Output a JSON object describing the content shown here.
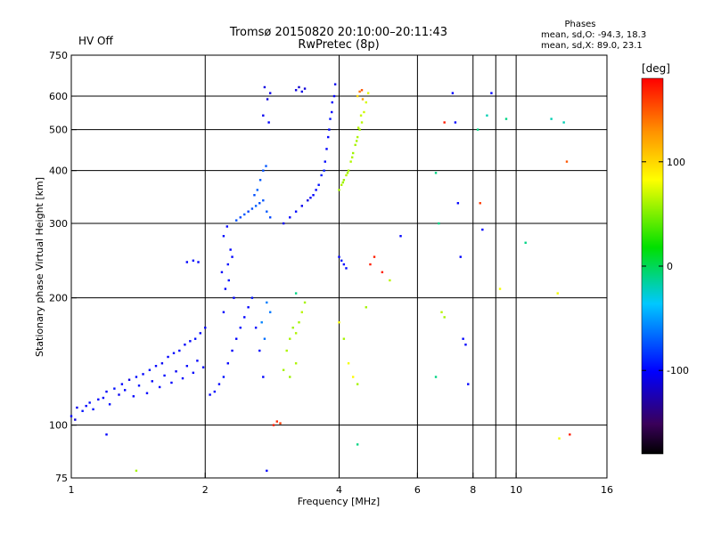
{
  "header": {
    "status": "HV Off",
    "status_color": "#e00000",
    "title_line1": "Tromsø 20150820 20:10:00–20:11:43",
    "title_line2": "RwPretec (8p)",
    "stats_title": "Phases",
    "stats_o": "mean, sd,O: -94.3, 18.3",
    "stats_x": "mean, sd,X:  89.0, 23.1"
  },
  "chart_data": {
    "type": "scatter",
    "xlabel": "Frequency [MHz]",
    "ylabel": "Stationary phase Virtual Height [km]",
    "x_scale": "log",
    "y_scale": "log",
    "xlim": [
      1,
      16
    ],
    "ylim": [
      75,
      750
    ],
    "x_ticks": [
      1,
      2,
      4,
      6,
      8,
      10,
      16
    ],
    "x_tick_labels": [
      "1",
      "2",
      "4",
      "6",
      "8",
      "10",
      "16"
    ],
    "x_grid": [
      2,
      4,
      6,
      8,
      9,
      10
    ],
    "y_ticks": [
      75,
      100,
      200,
      300,
      400,
      500,
      600,
      750
    ],
    "y_tick_labels": [
      "75",
      "100",
      "200",
      "300",
      "400",
      "500",
      "600",
      "750"
    ],
    "y_grid": [
      100,
      200,
      300,
      400,
      500,
      600
    ],
    "grid": true,
    "colorbar": {
      "label": "[deg]",
      "range": [
        -180,
        180
      ],
      "ticks": [
        100,
        0,
        -100
      ],
      "tick_labels": [
        "100",
        "0",
        "-100"
      ]
    },
    "points": [
      [
        1.0,
        105,
        -100
      ],
      [
        1.03,
        110,
        -105
      ],
      [
        1.06,
        108,
        -95
      ],
      [
        1.1,
        113,
        -98
      ],
      [
        1.15,
        115,
        -100
      ],
      [
        1.2,
        120,
        -102
      ],
      [
        1.25,
        122,
        -96
      ],
      [
        1.3,
        125,
        -100
      ],
      [
        1.35,
        128,
        -110
      ],
      [
        1.4,
        130,
        -98
      ],
      [
        1.45,
        132,
        -100
      ],
      [
        1.5,
        135,
        -95
      ],
      [
        1.55,
        138,
        -100
      ],
      [
        1.6,
        140,
        -104
      ],
      [
        1.65,
        145,
        -100
      ],
      [
        1.7,
        148,
        -98
      ],
      [
        1.75,
        150,
        -100
      ],
      [
        1.8,
        155,
        -102
      ],
      [
        1.85,
        158,
        -100
      ],
      [
        1.9,
        160,
        -97
      ],
      [
        1.95,
        165,
        -100
      ],
      [
        2.0,
        170,
        -100
      ],
      [
        1.02,
        103,
        -110
      ],
      [
        1.08,
        111,
        -100
      ],
      [
        1.12,
        109,
        -95
      ],
      [
        1.18,
        116,
        -100
      ],
      [
        1.22,
        112,
        -98
      ],
      [
        1.28,
        118,
        -105
      ],
      [
        1.32,
        121,
        -100
      ],
      [
        1.38,
        117,
        -100
      ],
      [
        1.42,
        124,
        -96
      ],
      [
        1.48,
        119,
        -100
      ],
      [
        1.52,
        127,
        -102
      ],
      [
        1.58,
        123,
        -100
      ],
      [
        1.62,
        131,
        -98
      ],
      [
        1.68,
        126,
        -100
      ],
      [
        1.72,
        134,
        -104
      ],
      [
        1.78,
        129,
        -100
      ],
      [
        1.82,
        138,
        -99
      ],
      [
        1.88,
        133,
        -100
      ],
      [
        1.92,
        142,
        -101
      ],
      [
        1.98,
        137,
        -100
      ],
      [
        2.05,
        118,
        -100
      ],
      [
        2.1,
        120,
        -98
      ],
      [
        2.15,
        125,
        -100
      ],
      [
        2.2,
        130,
        -96
      ],
      [
        2.25,
        140,
        -100
      ],
      [
        2.3,
        150,
        -102
      ],
      [
        2.35,
        160,
        -100
      ],
      [
        2.4,
        170,
        -98
      ],
      [
        2.45,
        180,
        -100
      ],
      [
        2.5,
        190,
        -100
      ],
      [
        2.55,
        200,
        -95
      ],
      [
        2.6,
        170,
        -100
      ],
      [
        2.65,
        150,
        -99
      ],
      [
        2.7,
        130,
        -100
      ],
      [
        2.75,
        195,
        -60
      ],
      [
        2.8,
        185,
        -62
      ],
      [
        2.68,
        175,
        -58
      ],
      [
        2.72,
        160,
        -65
      ],
      [
        2.2,
        185,
        -100
      ],
      [
        2.22,
        210,
        -100
      ],
      [
        2.25,
        240,
        -98
      ],
      [
        2.28,
        260,
        -100
      ],
      [
        2.2,
        280,
        -97
      ],
      [
        2.24,
        295,
        -100
      ],
      [
        2.18,
        230,
        -102
      ],
      [
        2.3,
        250,
        -100
      ],
      [
        2.26,
        220,
        -95
      ],
      [
        2.32,
        200,
        -100
      ],
      [
        2.35,
        305,
        -75
      ],
      [
        2.4,
        310,
        -78
      ],
      [
        2.45,
        315,
        -72
      ],
      [
        2.5,
        320,
        -80
      ],
      [
        2.55,
        325,
        -75
      ],
      [
        2.6,
        330,
        -70
      ],
      [
        2.65,
        335,
        -76
      ],
      [
        2.7,
        340,
        -74
      ],
      [
        2.75,
        320,
        -72
      ],
      [
        2.8,
        310,
        -78
      ],
      [
        2.62,
        360,
        -70
      ],
      [
        2.66,
        380,
        -72
      ],
      [
        2.7,
        400,
        -75
      ],
      [
        2.74,
        410,
        -73
      ],
      [
        2.58,
        350,
        -76
      ],
      [
        2.72,
        630,
        -110
      ],
      [
        2.8,
        610,
        -108
      ],
      [
        2.76,
        590,
        -112
      ],
      [
        2.7,
        540,
        -105
      ],
      [
        2.78,
        520,
        -100
      ],
      [
        1.82,
        243,
        -100
      ],
      [
        1.88,
        245,
        -98
      ],
      [
        1.93,
        243,
        -102
      ],
      [
        3.0,
        300,
        -105
      ],
      [
        3.1,
        310,
        -100
      ],
      [
        3.2,
        320,
        -98
      ],
      [
        3.3,
        330,
        -105
      ],
      [
        3.4,
        340,
        -110
      ],
      [
        3.5,
        350,
        -100
      ],
      [
        3.6,
        370,
        -95
      ],
      [
        3.7,
        400,
        -90
      ],
      [
        3.75,
        450,
        -100
      ],
      [
        3.8,
        500,
        -98
      ],
      [
        3.85,
        550,
        -102
      ],
      [
        3.9,
        600,
        -100
      ],
      [
        3.92,
        640,
        -105
      ],
      [
        3.72,
        420,
        -98
      ],
      [
        3.78,
        480,
        -100
      ],
      [
        3.82,
        530,
        -95
      ],
      [
        3.86,
        580,
        -100
      ],
      [
        3.65,
        390,
        -92
      ],
      [
        3.55,
        360,
        -100
      ],
      [
        3.45,
        345,
        -104
      ],
      [
        3.2,
        620,
        -110
      ],
      [
        3.25,
        630,
        -115
      ],
      [
        3.3,
        615,
        -108
      ],
      [
        3.35,
        625,
        -112
      ],
      [
        4.0,
        360,
        60
      ],
      [
        4.05,
        370,
        62
      ],
      [
        4.1,
        380,
        58
      ],
      [
        4.15,
        390,
        65
      ],
      [
        4.2,
        400,
        60
      ],
      [
        4.25,
        420,
        63
      ],
      [
        4.3,
        440,
        58
      ],
      [
        4.35,
        460,
        60
      ],
      [
        4.4,
        480,
        62
      ],
      [
        4.45,
        500,
        60
      ],
      [
        4.5,
        520,
        65
      ],
      [
        4.55,
        550,
        70
      ],
      [
        4.6,
        580,
        72
      ],
      [
        4.65,
        610,
        75
      ],
      [
        4.48,
        540,
        68
      ],
      [
        4.38,
        470,
        60
      ],
      [
        4.28,
        430,
        62
      ],
      [
        4.18,
        395,
        60
      ],
      [
        4.08,
        375,
        58
      ],
      [
        4.42,
        505,
        64
      ],
      [
        4.5,
        620,
        150
      ],
      [
        4.45,
        615,
        140
      ],
      [
        4.4,
        600,
        100
      ],
      [
        4.52,
        590,
        120
      ],
      [
        3.1,
        160,
        60
      ],
      [
        3.15,
        170,
        58
      ],
      [
        3.2,
        165,
        62
      ],
      [
        3.25,
        175,
        60
      ],
      [
        3.3,
        185,
        65
      ],
      [
        3.35,
        195,
        60
      ],
      [
        3.05,
        150,
        62
      ],
      [
        3.0,
        135,
        60
      ],
      [
        3.1,
        130,
        58
      ],
      [
        3.2,
        140,
        62
      ],
      [
        2.85,
        100,
        170
      ],
      [
        2.9,
        102,
        165
      ],
      [
        2.95,
        101,
        160
      ],
      [
        4.0,
        250,
        -100
      ],
      [
        4.05,
        245,
        -95
      ],
      [
        4.1,
        240,
        -100
      ],
      [
        4.15,
        235,
        -98
      ],
      [
        4.0,
        175,
        80
      ],
      [
        4.1,
        160,
        60
      ],
      [
        4.2,
        140,
        80
      ],
      [
        4.3,
        130,
        85
      ],
      [
        4.4,
        125,
        60
      ],
      [
        4.6,
        190,
        60
      ],
      [
        4.7,
        240,
        170
      ],
      [
        4.8,
        250,
        170
      ],
      [
        5.0,
        230,
        170
      ],
      [
        5.2,
        220,
        65
      ],
      [
        4.4,
        90,
        -10
      ],
      [
        5.5,
        280,
        -100
      ],
      [
        6.6,
        395,
        -10
      ],
      [
        6.7,
        300,
        -10
      ],
      [
        6.9,
        520,
        170
      ],
      [
        7.2,
        610,
        -100
      ],
      [
        7.3,
        520,
        -100
      ],
      [
        7.4,
        335,
        -100
      ],
      [
        7.5,
        250,
        -100
      ],
      [
        7.6,
        160,
        -100
      ],
      [
        7.7,
        155,
        -100
      ],
      [
        7.8,
        125,
        -100
      ],
      [
        8.2,
        500,
        -10
      ],
      [
        8.4,
        290,
        -100
      ],
      [
        8.6,
        540,
        -20
      ],
      [
        8.8,
        610,
        -100
      ],
      [
        9.2,
        210,
        80
      ],
      [
        9.5,
        530,
        -10
      ],
      [
        10.5,
        270,
        -10
      ],
      [
        12.0,
        530,
        -20
      ],
      [
        12.8,
        520,
        -20
      ],
      [
        13.0,
        420,
        150
      ],
      [
        13.2,
        95,
        170
      ],
      [
        12.5,
        93,
        80
      ],
      [
        12.4,
        205,
        80
      ],
      [
        6.8,
        185,
        65
      ],
      [
        6.9,
        180,
        60
      ],
      [
        6.6,
        130,
        -10
      ],
      [
        8.3,
        335,
        160
      ],
      [
        1.4,
        78,
        60
      ],
      [
        1.2,
        95,
        -100
      ],
      [
        3.2,
        205,
        -10
      ],
      [
        2.75,
        78,
        -100
      ]
    ]
  }
}
